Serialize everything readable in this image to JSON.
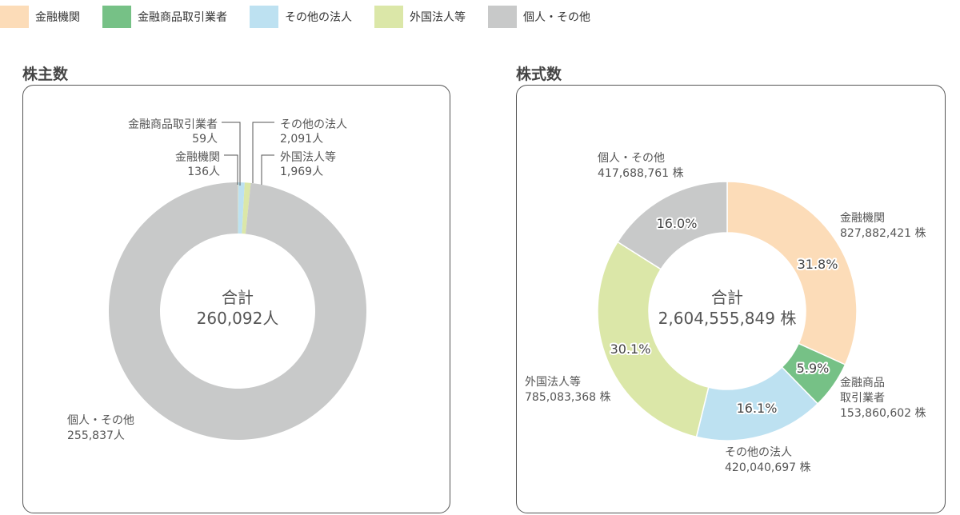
{
  "legend": [
    {
      "label": "金融機関",
      "color": "#fcdcb8"
    },
    {
      "label": "金融商品取引業者",
      "color": "#76c186"
    },
    {
      "label": "その他の法人",
      "color": "#bde1f1"
    },
    {
      "label": "外国法人等",
      "color": "#dbe7a8"
    },
    {
      "label": "個人・その他",
      "color": "#c8c9c9"
    }
  ],
  "chart_data": [
    {
      "type": "pie",
      "title": "株主数",
      "center_title": "合計",
      "center_value": "260,092人",
      "slices": [
        {
          "name": "金融機関",
          "value": 136,
          "value_label": "136人",
          "color": "#fcdcb8"
        },
        {
          "name": "金融商品取引業者",
          "value": 59,
          "value_label": "59人",
          "color": "#76c186"
        },
        {
          "name": "その他の法人",
          "value": 2091,
          "value_label": "2,091人",
          "color": "#bde1f1"
        },
        {
          "name": "外国法人等",
          "value": 1969,
          "value_label": "1,969人",
          "color": "#dbe7a8"
        },
        {
          "name": "個人・その他",
          "value": 255837,
          "value_label": "255,837人",
          "color": "#c8c9c9"
        }
      ]
    },
    {
      "type": "pie",
      "title": "株式数",
      "center_title": "合計",
      "center_value": "2,604,555,849 株",
      "slices": [
        {
          "name": "金融機関",
          "value": 827882421,
          "value_label": "827,882,421 株",
          "percent": "31.8%",
          "color": "#fcdcb8"
        },
        {
          "name": "金融商品取引業者",
          "name_lines": [
            "金融商品",
            "取引業者"
          ],
          "value": 153860602,
          "value_label": "153,860,602 株",
          "percent": "5.9%",
          "color": "#76c186"
        },
        {
          "name": "その他の法人",
          "value": 420040697,
          "value_label": "420,040,697 株",
          "percent": "16.1%",
          "color": "#bde1f1"
        },
        {
          "name": "外国法人等",
          "value": 785083368,
          "value_label": "785,083,368 株",
          "percent": "30.1%",
          "color": "#dbe7a8"
        },
        {
          "name": "個人・その他",
          "value": 417688761,
          "value_label": "417,688,761 株",
          "percent": "16.0%",
          "color": "#c8c9c9"
        }
      ]
    }
  ]
}
